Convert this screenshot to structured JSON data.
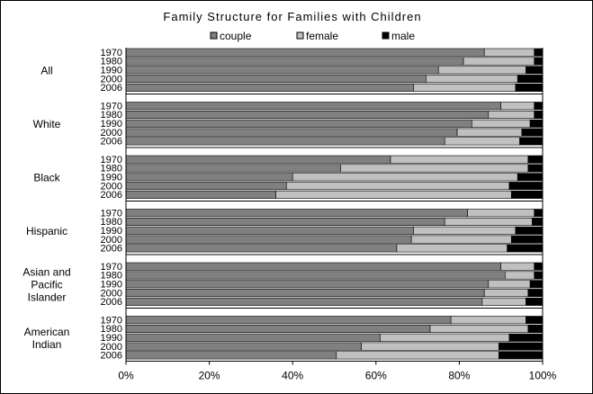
{
  "chart_data": {
    "type": "bar",
    "orientation": "horizontal",
    "stacked": true,
    "title": "Family Structure for Families with Children",
    "legend": {
      "position": "top",
      "items": [
        {
          "name": "couple",
          "color": "#808080"
        },
        {
          "name": "female",
          "color": "#c0c0c0"
        },
        {
          "name": "male",
          "color": "#000000"
        }
      ]
    },
    "xlim": [
      0,
      100
    ],
    "x_ticks": [
      "0%",
      "20%",
      "40%",
      "60%",
      "80%",
      "100%"
    ],
    "grid": false,
    "groups": [
      {
        "label": [
          "All"
        ],
        "rows": [
          {
            "year": "1970",
            "couple": 86,
            "female": 12,
            "male": 2
          },
          {
            "year": "1980",
            "couple": 81,
            "female": 17,
            "male": 2
          },
          {
            "year": "1990",
            "couple": 75,
            "female": 21,
            "male": 4
          },
          {
            "year": "2000",
            "couple": 72,
            "female": 22,
            "male": 6
          },
          {
            "year": "2006",
            "couple": 69,
            "female": 24.5,
            "male": 6.5
          }
        ]
      },
      {
        "label": [
          "White"
        ],
        "rows": [
          {
            "year": "1970",
            "couple": 90,
            "female": 8,
            "male": 2
          },
          {
            "year": "1980",
            "couple": 87,
            "female": 11,
            "male": 2
          },
          {
            "year": "1990",
            "couple": 83,
            "female": 14,
            "male": 3
          },
          {
            "year": "2000",
            "couple": 79.5,
            "female": 15.5,
            "male": 5
          },
          {
            "year": "2006",
            "couple": 76.5,
            "female": 18,
            "male": 5.5
          }
        ]
      },
      {
        "label": [
          "Black"
        ],
        "rows": [
          {
            "year": "1970",
            "couple": 63.5,
            "female": 33,
            "male": 3.5
          },
          {
            "year": "1980",
            "couple": 51.5,
            "female": 45,
            "male": 3.5
          },
          {
            "year": "1990",
            "couple": 40,
            "female": 54,
            "male": 6
          },
          {
            "year": "2000",
            "couple": 38.5,
            "female": 53.5,
            "male": 8
          },
          {
            "year": "2006",
            "couple": 36,
            "female": 56.5,
            "male": 7.5
          }
        ]
      },
      {
        "label": [
          "Hispanic"
        ],
        "rows": [
          {
            "year": "1970",
            "couple": 82,
            "female": 16,
            "male": 2
          },
          {
            "year": "1980",
            "couple": 76.5,
            "female": 21,
            "male": 2.5
          },
          {
            "year": "1990",
            "couple": 69,
            "female": 24.5,
            "male": 6.5
          },
          {
            "year": "2000",
            "couple": 68.5,
            "female": 24,
            "male": 7.5
          },
          {
            "year": "2006",
            "couple": 65,
            "female": 26.5,
            "male": 8.5
          }
        ]
      },
      {
        "label": [
          "Asian and",
          "Pacific",
          "Islander"
        ],
        "rows": [
          {
            "year": "1970",
            "couple": 90,
            "female": 8,
            "male": 2
          },
          {
            "year": "1980",
            "couple": 91,
            "female": 7,
            "male": 2
          },
          {
            "year": "1990",
            "couple": 87,
            "female": 10,
            "male": 3
          },
          {
            "year": "2000",
            "couple": 86,
            "female": 10.5,
            "male": 3.5
          },
          {
            "year": "2006",
            "couple": 85.5,
            "female": 10.5,
            "male": 4
          }
        ]
      },
      {
        "label": [
          "American",
          "Indian"
        ],
        "rows": [
          {
            "year": "1970",
            "couple": 78,
            "female": 18,
            "male": 4
          },
          {
            "year": "1980",
            "couple": 73,
            "female": 23.5,
            "male": 3.5
          },
          {
            "year": "1990",
            "couple": 61,
            "female": 31,
            "male": 8
          },
          {
            "year": "2000",
            "couple": 56.5,
            "female": 33,
            "male": 10.5
          },
          {
            "year": "2006",
            "couple": 50.5,
            "female": 39,
            "male": 10.5
          }
        ]
      }
    ]
  }
}
